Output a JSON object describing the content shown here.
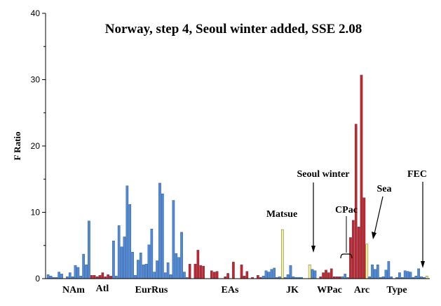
{
  "chart_data": {
    "type": "bar",
    "title": "Norway, step 4, Seoul winter added, SSE 2.08",
    "xlabel": "",
    "ylabel": "F Ratio",
    "ylim": [
      0,
      40
    ],
    "yticks": [
      0,
      10,
      20,
      30,
      40
    ],
    "grid": false,
    "colors": {
      "blue": "#4f8ad6",
      "red": "#cc2222",
      "yellow": "#f4f088"
    },
    "groups": [
      "NAm",
      "Atl",
      "EurRus",
      "EAs",
      "JK",
      "WPac",
      "Arc",
      "Type"
    ],
    "annotations": [
      "Seoul winter",
      "Matsue",
      "CPac",
      "Sea",
      "FEC"
    ],
    "bars": [
      {
        "c": "blue",
        "v": 0.6
      },
      {
        "c": "blue",
        "v": 0.4
      },
      {
        "c": "blue",
        "v": 0.2
      },
      {
        "c": "blue",
        "v": 0.2
      },
      {
        "c": "blue",
        "v": 1.0
      },
      {
        "c": "blue",
        "v": 0.7
      },
      {
        "c": "blue",
        "v": 0
      },
      {
        "c": "blue",
        "v": 0.3
      },
      {
        "c": "blue",
        "v": 0.9
      },
      {
        "c": "blue",
        "v": 0.3
      },
      {
        "c": "blue",
        "v": 2.0
      },
      {
        "c": "blue",
        "v": 1.7
      },
      {
        "c": "blue",
        "v": 0.4
      },
      {
        "c": "blue",
        "v": 3.7
      },
      {
        "c": "blue",
        "v": 2.1
      },
      {
        "c": "blue",
        "v": 8.7
      },
      {
        "c": "red",
        "v": 0.5
      },
      {
        "c": "red",
        "v": 0.5
      },
      {
        "c": "red",
        "v": 0.3
      },
      {
        "c": "red",
        "v": 0.5
      },
      {
        "c": "red",
        "v": 0.9
      },
      {
        "c": "red",
        "v": 0.3
      },
      {
        "c": "red",
        "v": 0.6
      },
      {
        "c": "red",
        "v": 0.4
      },
      {
        "c": "blue",
        "v": 5.7
      },
      {
        "c": "blue",
        "v": 0.4
      },
      {
        "c": "blue",
        "v": 8.0
      },
      {
        "c": "blue",
        "v": 4.8
      },
      {
        "c": "blue",
        "v": 6.3
      },
      {
        "c": "blue",
        "v": 14.0
      },
      {
        "c": "blue",
        "v": 11.2
      },
      {
        "c": "blue",
        "v": 4.0
      },
      {
        "c": "blue",
        "v": 0.5
      },
      {
        "c": "blue",
        "v": 2.8
      },
      {
        "c": "blue",
        "v": 3.9
      },
      {
        "c": "blue",
        "v": 2.1
      },
      {
        "c": "blue",
        "v": 2.2
      },
      {
        "c": "blue",
        "v": 5.1
      },
      {
        "c": "blue",
        "v": 7.5
      },
      {
        "c": "blue",
        "v": 1.0
      },
      {
        "c": "blue",
        "v": 2.7
      },
      {
        "c": "blue",
        "v": 14.4
      },
      {
        "c": "blue",
        "v": 12.8
      },
      {
        "c": "blue",
        "v": 0.9
      },
      {
        "c": "blue",
        "v": 2.4
      },
      {
        "c": "blue",
        "v": 0.6
      },
      {
        "c": "blue",
        "v": 11.8
      },
      {
        "c": "blue",
        "v": 3.8
      },
      {
        "c": "blue",
        "v": 3.2
      },
      {
        "c": "blue",
        "v": 7.0
      },
      {
        "c": "blue",
        "v": 1.0
      },
      {
        "c": "blue",
        "v": 0.2
      },
      {
        "c": "red",
        "v": 2.2
      },
      {
        "c": "red",
        "v": 0
      },
      {
        "c": "red",
        "v": 2.2
      },
      {
        "c": "red",
        "v": 4.3
      },
      {
        "c": "red",
        "v": 2.0
      },
      {
        "c": "red",
        "v": 1.9
      },
      {
        "c": "red",
        "v": 0
      },
      {
        "c": "red",
        "v": 0
      },
      {
        "c": "red",
        "v": 1.2
      },
      {
        "c": "red",
        "v": 1.0
      },
      {
        "c": "red",
        "v": 1.1
      },
      {
        "c": "red",
        "v": 0
      },
      {
        "c": "red",
        "v": 0
      },
      {
        "c": "red",
        "v": 0.3
      },
      {
        "c": "red",
        "v": 0.8
      },
      {
        "c": "red",
        "v": 0
      },
      {
        "c": "red",
        "v": 2.5
      },
      {
        "c": "red",
        "v": 0
      },
      {
        "c": "red",
        "v": 0
      },
      {
        "c": "red",
        "v": 2.1
      },
      {
        "c": "red",
        "v": 0.4
      },
      {
        "c": "red",
        "v": 1.1
      },
      {
        "c": "red",
        "v": 0
      },
      {
        "c": "red",
        "v": 0.2
      },
      {
        "c": "red",
        "v": 0
      },
      {
        "c": "red",
        "v": 0.5
      },
      {
        "c": "red",
        "v": 0.2
      },
      {
        "c": "blue",
        "v": 0.4
      },
      {
        "c": "blue",
        "v": 1.2
      },
      {
        "c": "blue",
        "v": 1.0
      },
      {
        "c": "blue",
        "v": 1.4
      },
      {
        "c": "blue",
        "v": 1.6
      },
      {
        "c": "blue",
        "v": 0.2
      },
      {
        "c": "blue",
        "v": 0.3
      },
      {
        "c": "yellow",
        "v": 7.4
      },
      {
        "c": "blue",
        "v": 0.2
      },
      {
        "c": "blue",
        "v": 0.6
      },
      {
        "c": "blue",
        "v": 2.0
      },
      {
        "c": "blue",
        "v": 0.3
      },
      {
        "c": "blue",
        "v": 0.2
      },
      {
        "c": "blue",
        "v": 0.2
      },
      {
        "c": "blue",
        "v": 0.2
      },
      {
        "c": "blue",
        "v": 0
      },
      {
        "c": "blue",
        "v": 0
      },
      {
        "c": "yellow",
        "v": 2.1
      },
      {
        "c": "blue",
        "v": 1.4
      },
      {
        "c": "blue",
        "v": 1.2
      },
      {
        "c": "blue",
        "v": 0
      },
      {
        "c": "red",
        "v": 0.3
      },
      {
        "c": "red",
        "v": 0.9
      },
      {
        "c": "red",
        "v": 1.3
      },
      {
        "c": "red",
        "v": 0.9
      },
      {
        "c": "red",
        "v": 1.5
      },
      {
        "c": "red",
        "v": 0.3
      },
      {
        "c": "red",
        "v": 0.3
      },
      {
        "c": "red",
        "v": 0.3
      },
      {
        "c": "blue",
        "v": 0.3
      },
      {
        "c": "blue",
        "v": 0.7
      },
      {
        "c": "blue",
        "v": 0.2
      },
      {
        "c": "red",
        "v": 6.2
      },
      {
        "c": "red",
        "v": 8.8
      },
      {
        "c": "red",
        "v": 23.3
      },
      {
        "c": "red",
        "v": 7.8
      },
      {
        "c": "red",
        "v": 30.7
      },
      {
        "c": "red",
        "v": 12.2
      },
      {
        "c": "yellow",
        "v": 5.2
      },
      {
        "c": "blue",
        "v": 0.3
      },
      {
        "c": "blue",
        "v": 2.1
      },
      {
        "c": "blue",
        "v": 1.4
      },
      {
        "c": "blue",
        "v": 2.1
      },
      {
        "c": "blue",
        "v": 0.2
      },
      {
        "c": "blue",
        "v": 0.3
      },
      {
        "c": "blue",
        "v": 1.3
      },
      {
        "c": "blue",
        "v": 2.6
      },
      {
        "c": "blue",
        "v": 0.3
      },
      {
        "c": "blue",
        "v": 0
      },
      {
        "c": "blue",
        "v": 0.2
      },
      {
        "c": "blue",
        "v": 0.9
      },
      {
        "c": "blue",
        "v": 0.2
      },
      {
        "c": "blue",
        "v": 1.2
      },
      {
        "c": "blue",
        "v": 1.1
      },
      {
        "c": "blue",
        "v": 1.0
      },
      {
        "c": "blue",
        "v": 0.2
      },
      {
        "c": "blue",
        "v": 0.4
      },
      {
        "c": "blue",
        "v": 1.5
      },
      {
        "c": "blue",
        "v": 0.3
      },
      {
        "c": "blue",
        "v": 0.2
      },
      {
        "c": "yellow",
        "v": 0.4
      }
    ]
  }
}
